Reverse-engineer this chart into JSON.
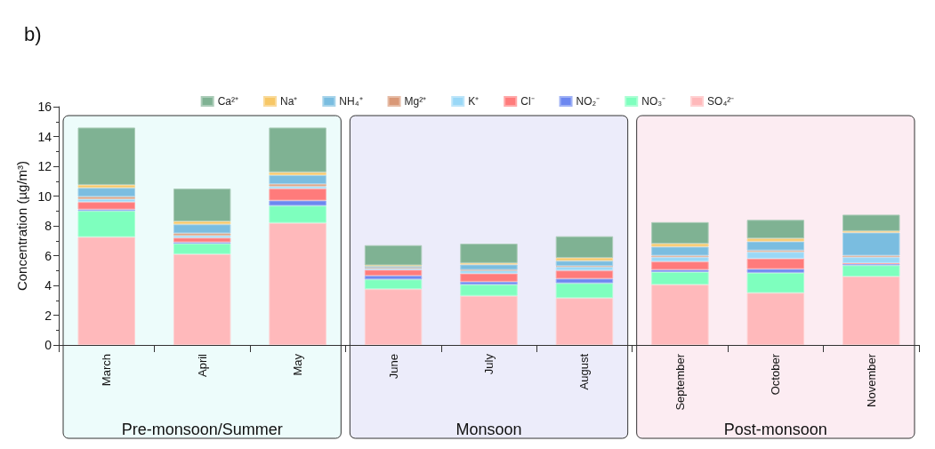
{
  "chart_data": {
    "type": "bar",
    "title": "b)",
    "ylabel": "Concentration (µg/m³)",
    "stacked": true,
    "categories": [
      "March",
      "April",
      "May",
      "June",
      "July",
      "August",
      "September",
      "October",
      "November"
    ],
    "series": [
      {
        "name": "SO₄²⁻",
        "color": "#ffb9bb",
        "values": [
          7.25,
          6.1,
          8.2,
          3.75,
          3.3,
          3.15,
          4.05,
          3.5,
          4.6
        ]
      },
      {
        "name": "NO₃⁻",
        "color": "#7effbe",
        "values": [
          1.75,
          0.7,
          1.15,
          0.65,
          0.75,
          1.0,
          0.85,
          1.35,
          0.75
        ]
      },
      {
        "name": "NO₂⁻",
        "color": "#6c87f0",
        "values": [
          0.1,
          0.1,
          0.35,
          0.25,
          0.2,
          0.3,
          0.15,
          0.25,
          0.1
        ]
      },
      {
        "name": "Cl⁻",
        "color": "#ff7b7b",
        "values": [
          0.5,
          0.3,
          0.8,
          0.4,
          0.55,
          0.55,
          0.55,
          0.7,
          0.05
        ]
      },
      {
        "name": "K⁺",
        "color": "#9ad8f7",
        "values": [
          0.2,
          0.15,
          0.15,
          0.1,
          0.2,
          0.25,
          0.3,
          0.45,
          0.4
        ]
      },
      {
        "name": "Mg²⁺",
        "color": "#d99877",
        "values": [
          0.15,
          0.15,
          0.15,
          0.05,
          0.05,
          0.05,
          0.1,
          0.1,
          0.1
        ]
      },
      {
        "name": "NH₄⁺",
        "color": "#7abde0",
        "values": [
          0.6,
          0.6,
          0.6,
          0.1,
          0.35,
          0.35,
          0.6,
          0.6,
          1.55
        ]
      },
      {
        "name": "Na⁺",
        "color": "#f7c766",
        "values": [
          0.2,
          0.2,
          0.2,
          0.05,
          0.1,
          0.2,
          0.2,
          0.2,
          0.1
        ]
      },
      {
        "name": "Ca²⁺",
        "color": "#7fb293",
        "values": [
          3.85,
          2.2,
          3.0,
          1.35,
          1.3,
          1.45,
          1.45,
          1.25,
          1.1
        ]
      }
    ],
    "ylim": [
      0,
      16
    ],
    "yticks": [
      0,
      2,
      4,
      6,
      8,
      10,
      12,
      14,
      16
    ],
    "grid": false,
    "legend": "top",
    "bands": [
      {
        "axis": "x",
        "from": "March",
        "to": "May",
        "label": "Pre-monsoon/Summer",
        "color": "#edfcfb"
      },
      {
        "axis": "x",
        "from": "June",
        "to": "August",
        "label": "Monsoon",
        "color": "#ececfa"
      },
      {
        "axis": "x",
        "from": "September",
        "to": "November",
        "label": "Post-monsoon",
        "color": "#fcecf2"
      }
    ]
  }
}
